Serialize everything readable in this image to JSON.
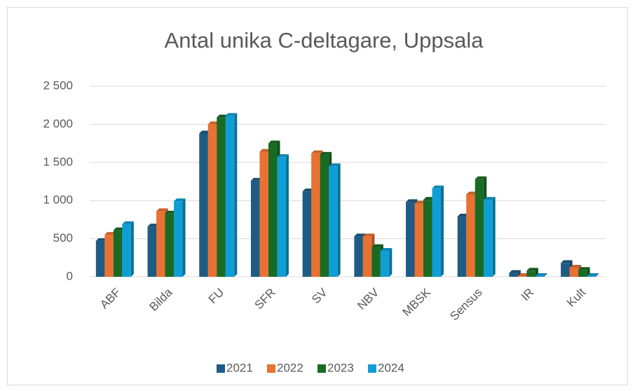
{
  "chart_data": {
    "type": "bar",
    "title": "Antal unika C-deltagare, Uppsala",
    "categories": [
      "ABF",
      "Bilda",
      "FU",
      "SFR",
      "SV",
      "NBV",
      "MBSK",
      "Sensus",
      "IR",
      "Kult"
    ],
    "series": [
      {
        "name": "2021",
        "color": "#1f5c84",
        "values": [
          470,
          660,
          1880,
          1260,
          1120,
          530,
          980,
          790,
          50,
          180
        ]
      },
      {
        "name": "2022",
        "color": "#e97132",
        "values": [
          550,
          860,
          2000,
          1640,
          1620,
          530,
          960,
          1080,
          10,
          120
        ]
      },
      {
        "name": "2023",
        "color": "#196b24",
        "values": [
          610,
          830,
          2090,
          1750,
          1600,
          390,
          1010,
          1280,
          80,
          90
        ]
      },
      {
        "name": "2024",
        "color": "#0f9ed5",
        "values": [
          690,
          990,
          2110,
          1570,
          1450,
          340,
          1160,
          1010,
          10,
          10
        ]
      }
    ],
    "ylim": [
      0,
      2500
    ],
    "yticks": [
      0,
      500,
      {
        "value": 1000,
        "label": "1 000"
      },
      {
        "value": 1500,
        "label": "1 500"
      },
      {
        "value": 2000,
        "label": "2 000"
      },
      {
        "value": 2500,
        "label": "2 500"
      }
    ],
    "grid": true,
    "legend": "bottom"
  }
}
